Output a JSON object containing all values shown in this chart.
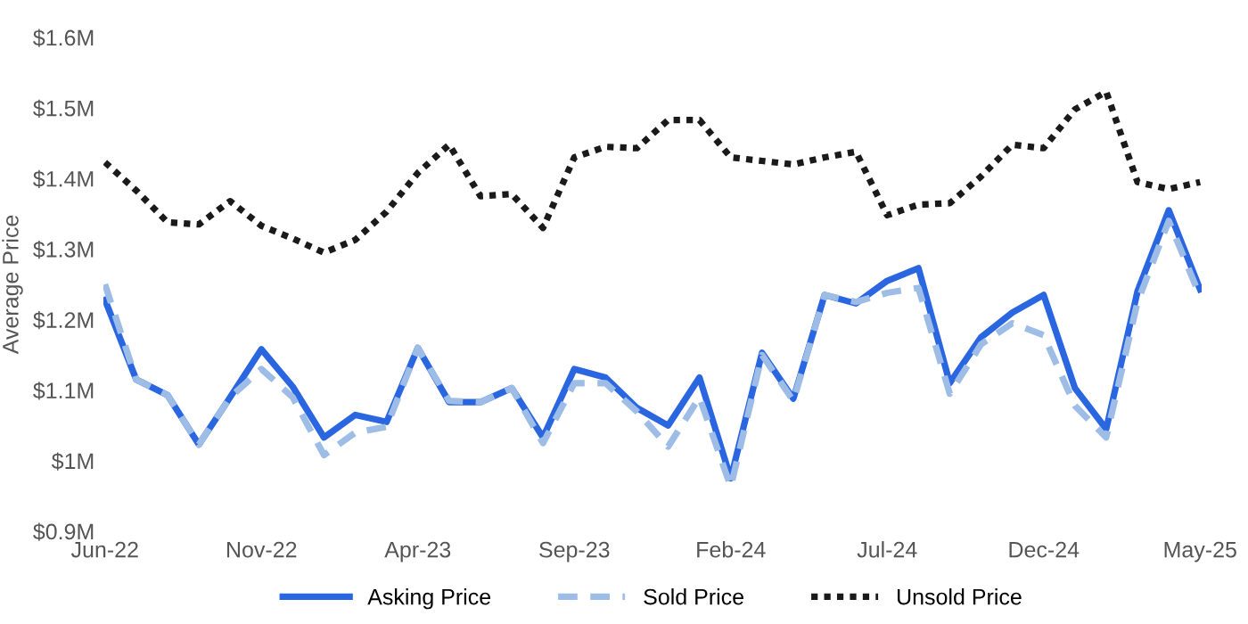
{
  "chart_data": {
    "type": "line",
    "ylabel": "Average Price",
    "categories": [
      "Jun-22",
      null,
      null,
      null,
      null,
      "Nov-22",
      null,
      null,
      null,
      null,
      "Apr-23",
      null,
      null,
      null,
      null,
      "Sep-23",
      null,
      null,
      null,
      null,
      "Feb-24",
      null,
      null,
      null,
      null,
      "Jul-24",
      null,
      null,
      null,
      null,
      "Dec-24",
      null,
      null,
      null,
      null,
      "May-25"
    ],
    "series": [
      {
        "name": "Asking Price",
        "color": "#2a66e0",
        "line_style": "solid",
        "values": [
          1.228,
          1.115,
          1.093,
          1.023,
          1.09,
          1.158,
          1.105,
          1.033,
          1.065,
          1.055,
          1.16,
          1.083,
          1.083,
          1.103,
          1.033,
          1.13,
          1.118,
          1.075,
          1.05,
          1.118,
          0.975,
          1.153,
          1.088,
          1.235,
          1.223,
          1.255,
          1.273,
          1.11,
          1.175,
          1.21,
          1.235,
          1.103,
          1.045,
          1.24,
          1.355,
          1.243
        ]
      },
      {
        "name": "Sold Price",
        "color": "#9dbde6",
        "line_style": "dashed",
        "values": [
          1.25,
          1.115,
          1.093,
          1.023,
          1.09,
          1.13,
          1.09,
          1.008,
          1.04,
          1.048,
          1.16,
          1.085,
          1.083,
          1.103,
          1.025,
          1.11,
          1.11,
          1.07,
          1.02,
          1.09,
          0.963,
          1.15,
          1.085,
          1.235,
          1.225,
          1.238,
          1.245,
          1.095,
          1.165,
          1.195,
          1.178,
          1.078,
          1.033,
          1.225,
          1.34,
          1.233
        ]
      },
      {
        "name": "Unsold Price",
        "color": "#1a1a1a",
        "line_style": "dotted",
        "values": [
          1.423,
          1.383,
          1.338,
          1.335,
          1.368,
          1.333,
          1.315,
          1.295,
          1.313,
          1.353,
          1.408,
          1.448,
          1.375,
          1.378,
          1.33,
          1.43,
          1.445,
          1.443,
          1.483,
          1.483,
          1.43,
          1.425,
          1.42,
          1.43,
          1.438,
          1.348,
          1.363,
          1.365,
          1.403,
          1.448,
          1.443,
          1.498,
          1.523,
          1.395,
          1.385,
          1.395
        ]
      }
    ],
    "ylim": [
      0.9,
      1.6
    ],
    "yticks": [
      {
        "value": 0.9,
        "label": "$0.9M"
      },
      {
        "value": 1.0,
        "label": "$1M"
      },
      {
        "value": 1.1,
        "label": "$1.1M"
      },
      {
        "value": 1.2,
        "label": "$1.2M"
      },
      {
        "value": 1.3,
        "label": "$1.3M"
      },
      {
        "value": 1.4,
        "label": "$1.4M"
      },
      {
        "value": 1.5,
        "label": "$1.5M"
      },
      {
        "value": 1.6,
        "label": "$1.6M"
      }
    ],
    "grid": false,
    "legend": "bottom",
    "marker": "none"
  }
}
